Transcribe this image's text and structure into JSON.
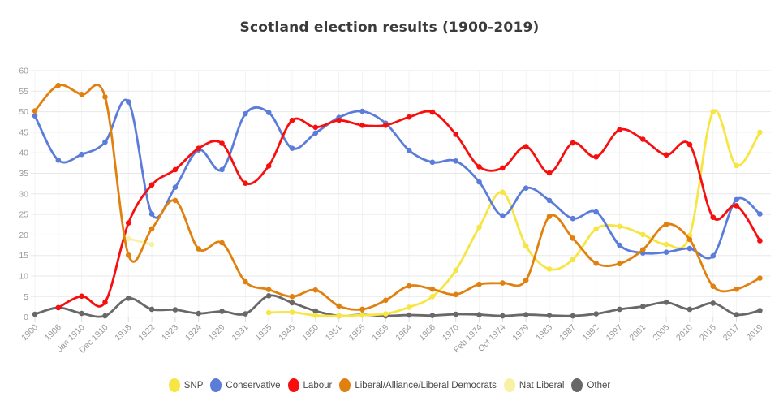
{
  "title": "Scotland election results (1900-2019)",
  "chart_data": {
    "type": "line",
    "title": "Scotland election results (1900-2019)",
    "xlabel": "",
    "ylabel": "",
    "ylim": [
      0,
      60
    ],
    "y_tick_step": 5,
    "grid": "horizontal gridlines with faint vertical category lines",
    "legend_position": "bottom",
    "categories": [
      "1900",
      "1906",
      "Jan 1910",
      "Dec 1910",
      "1918",
      "1922",
      "1923",
      "1924",
      "1929",
      "1931",
      "1935",
      "1945",
      "1950",
      "1951",
      "1955",
      "1959",
      "1964",
      "1966",
      "1970",
      "Feb 1974",
      "Oct 1974",
      "1979",
      "1983",
      "1987",
      "1992",
      "1997",
      "2001",
      "2005",
      "2010",
      "2015",
      "2017",
      "2019"
    ],
    "series": [
      {
        "name": "SNP",
        "color": "#f7e544",
        "values": [
          null,
          null,
          null,
          null,
          null,
          null,
          null,
          null,
          null,
          null,
          1.1,
          1.2,
          0.4,
          0.3,
          0.5,
          0.8,
          2.4,
          5.0,
          11.4,
          21.9,
          30.4,
          17.3,
          11.7,
          14.0,
          21.5,
          22.1,
          20.1,
          17.7,
          19.9,
          50.0,
          36.9,
          45.0
        ]
      },
      {
        "name": "Conservative",
        "color": "#5b7cd9",
        "values": [
          49.0,
          38.2,
          39.6,
          42.6,
          52.4,
          25.1,
          31.6,
          40.7,
          35.9,
          49.5,
          49.8,
          41.1,
          44.8,
          48.6,
          50.1,
          47.2,
          40.6,
          37.7,
          38.0,
          32.9,
          24.7,
          31.4,
          28.4,
          24.0,
          25.6,
          17.5,
          15.6,
          15.8,
          16.7,
          14.9,
          28.6,
          25.1
        ]
      },
      {
        "name": "Labour",
        "color": "#f70f0f",
        "values": [
          null,
          2.3,
          5.1,
          3.6,
          22.9,
          32.2,
          35.9,
          41.1,
          42.3,
          32.6,
          36.8,
          47.9,
          46.2,
          47.9,
          46.7,
          46.7,
          48.7,
          49.9,
          44.5,
          36.6,
          36.3,
          41.5,
          35.1,
          42.4,
          39.0,
          45.6,
          43.3,
          39.5,
          42.0,
          24.3,
          27.1,
          18.6
        ]
      },
      {
        "name": "Liberal/Alliance/Liberal Democrats",
        "color": "#e0810f",
        "values": [
          50.2,
          56.4,
          54.2,
          53.6,
          15.1,
          21.5,
          28.4,
          16.6,
          18.1,
          8.6,
          6.7,
          5.0,
          6.6,
          2.7,
          1.9,
          4.1,
          7.6,
          6.8,
          5.5,
          8.0,
          8.3,
          9.0,
          24.5,
          19.2,
          13.1,
          13.0,
          16.4,
          22.6,
          18.9,
          7.5,
          6.8,
          9.5
        ]
      },
      {
        "name": "Nat Liberal",
        "color": "#f7f2a3",
        "values": [
          null,
          null,
          null,
          null,
          19.1,
          17.7,
          null,
          null,
          null,
          null,
          null,
          null,
          null,
          null,
          null,
          null,
          null,
          null,
          null,
          null,
          null,
          null,
          null,
          null,
          null,
          null,
          null,
          null,
          null,
          null,
          null,
          null
        ]
      },
      {
        "name": "Other",
        "color": "#686868",
        "values": [
          0.7,
          2.3,
          0.9,
          0.3,
          4.6,
          1.9,
          1.8,
          0.9,
          1.4,
          0.8,
          5.2,
          3.5,
          1.5,
          0.3,
          0.6,
          0.3,
          0.5,
          0.4,
          0.7,
          0.6,
          0.3,
          0.6,
          0.4,
          0.3,
          0.8,
          1.9,
          2.6,
          3.6,
          1.9,
          3.4,
          0.6,
          1.6
        ]
      }
    ]
  }
}
